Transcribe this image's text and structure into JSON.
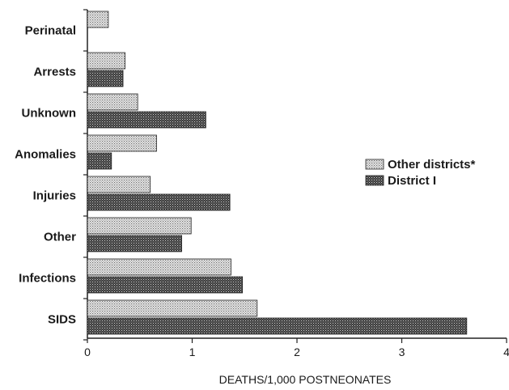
{
  "chart_data": {
    "type": "bar",
    "orientation": "horizontal",
    "categories": [
      "Perinatal",
      "Arrests",
      "Unknown",
      "Anomalies",
      "Injuries",
      "Other",
      "Infections",
      "SIDS"
    ],
    "series": [
      {
        "name": "Other districts*",
        "values": [
          0.2,
          0.36,
          0.48,
          0.66,
          0.6,
          0.99,
          1.37,
          1.62
        ],
        "color": "#cfcfcf",
        "pattern": "light-dots"
      },
      {
        "name": "District I",
        "values": [
          null,
          0.34,
          1.13,
          0.23,
          1.36,
          0.9,
          1.48,
          3.62
        ],
        "color": "#4a4a4a",
        "pattern": "dark-crosshatch"
      }
    ],
    "xlabel": "DEATHS/1,000 POSTNEONATES",
    "xlim": [
      0,
      4
    ],
    "xticks": [
      "0",
      "1",
      "2",
      "3",
      "4"
    ],
    "grid": false,
    "legend_position": "right"
  }
}
